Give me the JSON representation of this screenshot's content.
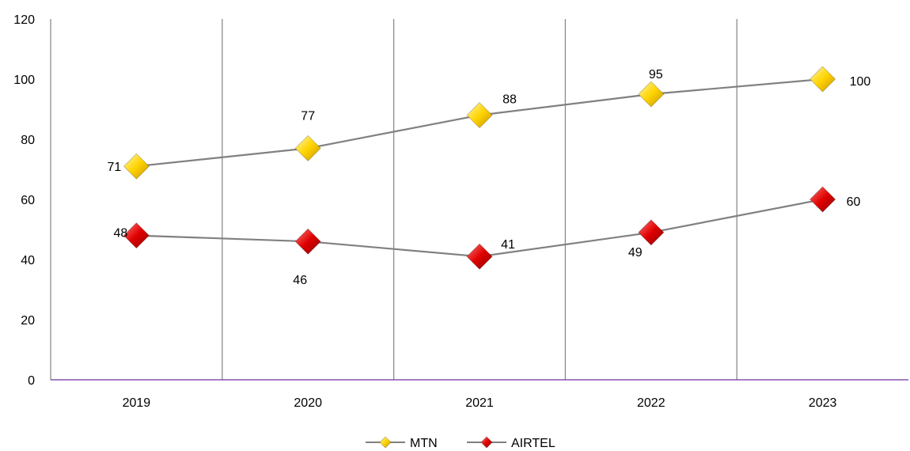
{
  "chart_data": {
    "type": "line",
    "categories": [
      "2019",
      "2020",
      "2021",
      "2022",
      "2023"
    ],
    "series": [
      {
        "name": "MTN",
        "values": [
          71,
          77,
          88,
          95,
          100
        ],
        "color": "#f5c400",
        "line_color": "#808080"
      },
      {
        "name": "AIRTEL",
        "values": [
          48,
          46,
          41,
          49,
          60
        ],
        "color": "#d40000",
        "line_color": "#808080"
      }
    ],
    "ylim": [
      0,
      120
    ],
    "yticks": [
      0,
      20,
      40,
      60,
      80,
      100,
      120
    ],
    "grid": "vertical",
    "legend": "bottom-center",
    "marker": "diamond",
    "axis_color": "#7030a0"
  }
}
